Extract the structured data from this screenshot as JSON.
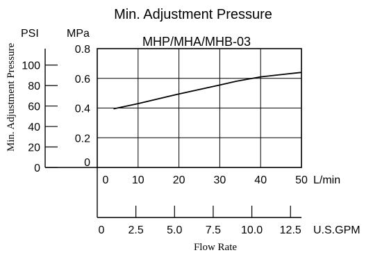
{
  "chart_data": {
    "type": "line",
    "title": "Min. Adjustment Pressure",
    "subtitle": "MHP/MHA/MHB-03",
    "ylabel": "Min. Adjustment Pressure",
    "xlabel": "Flow Rate",
    "y_units": {
      "psi": "PSI",
      "mpa": "MPa"
    },
    "x_units": {
      "lmin": "L/min",
      "gpm": "U.S.GPM"
    },
    "xlim": [
      0,
      50
    ],
    "ylim": [
      0,
      0.8
    ],
    "x_ticks_lmin": [
      "0",
      "10",
      "20",
      "30",
      "40",
      "50"
    ],
    "x_ticks_gpm": [
      "0",
      "2.5",
      "5.0",
      "7.5",
      "10.0",
      "12.5"
    ],
    "y_ticks_mpa": [
      "0",
      "0.2",
      "0.4",
      "0.6",
      "0.8"
    ],
    "y_ticks_psi": [
      "0",
      "20",
      "40",
      "60",
      "80",
      "100"
    ],
    "grid": true,
    "series": [
      {
        "x": [
          4,
          10,
          20,
          30,
          34,
          40,
          45,
          50
        ],
        "y": [
          0.395,
          0.43,
          0.495,
          0.555,
          0.58,
          0.61,
          0.625,
          0.64
        ]
      }
    ]
  }
}
